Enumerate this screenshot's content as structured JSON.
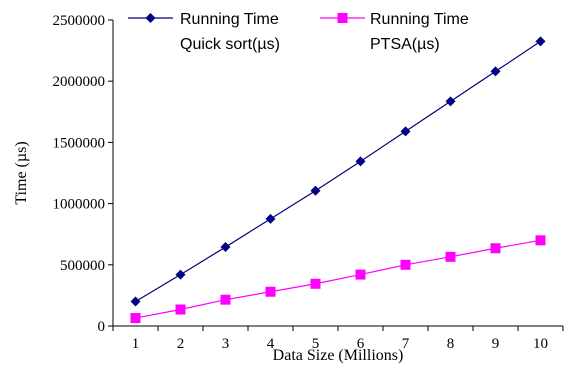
{
  "chart_data": {
    "type": "line",
    "xlabel": "Data Size (Millions)",
    "ylabel": "Time (µs)",
    "categories": [
      "1",
      "2",
      "3",
      "4",
      "5",
      "6",
      "7",
      "8",
      "9",
      "10"
    ],
    "ylim": [
      0,
      2500000
    ],
    "yticks": [
      "0",
      "500000",
      "1000000",
      "1500000",
      "2000000",
      "2500000"
    ],
    "ytick_values": [
      0,
      500000,
      1000000,
      1500000,
      2000000,
      2500000
    ],
    "grid": false,
    "legend_position": "top",
    "series": [
      {
        "name_line1": "Running Time",
        "name_line2": "Quick sort(µs)",
        "color": "#000080",
        "marker": "diamond",
        "values": [
          200000,
          420000,
          645000,
          875000,
          1105000,
          1345000,
          1590000,
          1835000,
          2080000,
          2325000
        ]
      },
      {
        "name_line1": "Running Time",
        "name_line2": "PTSA(µs)",
        "color": "#ff00ff",
        "marker": "square",
        "values": [
          65000,
          135000,
          215000,
          280000,
          345000,
          420000,
          500000,
          565000,
          635000,
          700000
        ]
      }
    ]
  }
}
